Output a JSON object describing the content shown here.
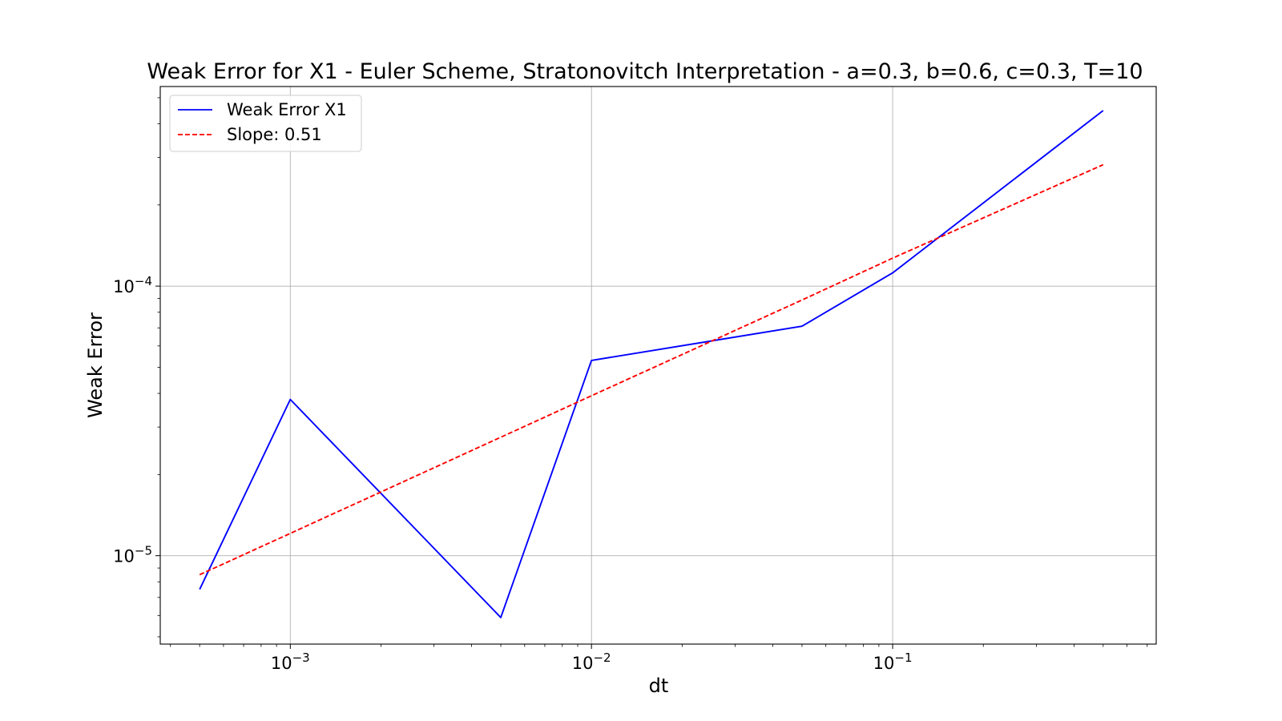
{
  "chart_data": {
    "type": "line",
    "title": "Weak Error for X1 - Euler Scheme, Stratonovitch Interpretation - a=0.3, b=0.6, c=0.3, T=10",
    "xlabel": "dt",
    "ylabel": "Weak Error",
    "xscale": "log",
    "yscale": "log",
    "xlim": [
      0.00037,
      0.75
    ],
    "ylim": [
      4.7e-06,
      0.00055
    ],
    "grid": true,
    "legend_position": "upper-left",
    "x_ticks": [
      {
        "value": 0.001,
        "base": "10",
        "exp": "−3"
      },
      {
        "value": 0.01,
        "base": "10",
        "exp": "−2"
      },
      {
        "value": 0.1,
        "base": "10",
        "exp": "−1"
      }
    ],
    "y_ticks": [
      {
        "value": 1e-05,
        "base": "10",
        "exp": "−5"
      },
      {
        "value": 0.0001,
        "base": "10",
        "exp": "−4"
      }
    ],
    "series": [
      {
        "name": "Weak Error X1",
        "color": "#0000ff",
        "style": "solid",
        "x": [
          0.0005,
          0.001,
          0.005,
          0.01,
          0.05,
          0.1,
          0.5
        ],
        "y": [
          7.5e-06,
          3.8e-05,
          5.9e-06,
          5.3e-05,
          7.1e-05,
          0.000112,
          0.000448
        ]
      },
      {
        "name": "Slope: 0.51",
        "color": "#ff0000",
        "style": "dashed",
        "x": [
          0.0005,
          0.001,
          0.005,
          0.01,
          0.05,
          0.1,
          0.5
        ],
        "y": [
          8.5e-06,
          1.21e-05,
          2.75e-05,
          3.92e-05,
          8.88e-05,
          0.000127,
          0.000282
        ]
      }
    ]
  }
}
